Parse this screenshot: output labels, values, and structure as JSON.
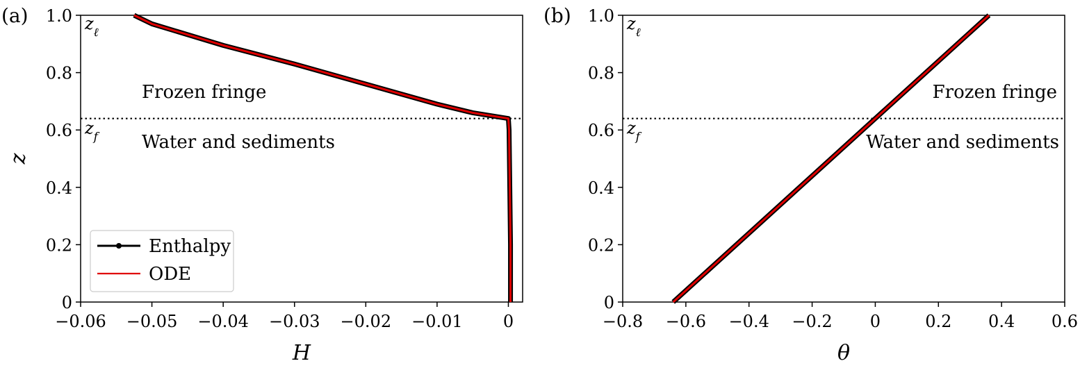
{
  "chart_data": [
    {
      "panel": "(a)",
      "type": "line",
      "xlabel": "H",
      "ylabel": "z",
      "xlim": [
        -0.06,
        0.002
      ],
      "ylim": [
        0,
        1.0
      ],
      "xticks": [
        -0.06,
        -0.05,
        -0.04,
        -0.03,
        -0.02,
        -0.01,
        0
      ],
      "xtick_labels": [
        "−0.06",
        "−0.05",
        "−0.04",
        "−0.03",
        "−0.02",
        "−0.01",
        "0"
      ],
      "yticks": [
        0,
        0.2,
        0.4,
        0.6,
        0.8,
        1.0
      ],
      "ytick_labels": [
        "0",
        "0.2",
        "0.4",
        "0.6",
        "0.8",
        "1.0"
      ],
      "freezing_front_z": 0.64,
      "annotations": {
        "z_top_main": "z",
        "z_top_sub": "ℓ",
        "z_front_main": "z",
        "z_front_sub": "f",
        "region_above": "Frozen fringe",
        "region_below": "Water and sediments"
      },
      "legend": {
        "position": "lower-left",
        "entries": [
          "Enthalpy",
          "ODE"
        ]
      },
      "series": [
        {
          "name": "Enthalpy",
          "color": "#000000",
          "marker": "dot",
          "points": [
            [
              0.0003,
              0.0
            ],
            [
              0.0003,
              0.2
            ],
            [
              0.0002,
              0.4
            ],
            [
              0.0001,
              0.6
            ],
            [
              0.0,
              0.64
            ],
            [
              -0.005,
              0.66
            ],
            [
              -0.01,
              0.69
            ],
            [
              -0.02,
              0.76
            ],
            [
              -0.03,
              0.83
            ],
            [
              -0.04,
              0.895
            ],
            [
              -0.05,
              0.97
            ],
            [
              -0.0525,
              1.0
            ]
          ]
        },
        {
          "name": "ODE",
          "color": "#e00000",
          "marker": "none",
          "points": [
            [
              0.0003,
              0.0
            ],
            [
              0.0003,
              0.2
            ],
            [
              0.0002,
              0.4
            ],
            [
              0.0001,
              0.6
            ],
            [
              0.0,
              0.64
            ],
            [
              -0.005,
              0.66
            ],
            [
              -0.01,
              0.69
            ],
            [
              -0.02,
              0.76
            ],
            [
              -0.03,
              0.83
            ],
            [
              -0.04,
              0.895
            ],
            [
              -0.05,
              0.97
            ],
            [
              -0.0525,
              1.0
            ]
          ]
        }
      ]
    },
    {
      "panel": "(b)",
      "type": "line",
      "xlabel": "θ",
      "ylabel": "",
      "xlim": [
        -0.8,
        0.6
      ],
      "ylim": [
        0,
        1.0
      ],
      "xticks": [
        -0.8,
        -0.6,
        -0.4,
        -0.2,
        0,
        0.2,
        0.4,
        0.6
      ],
      "xtick_labels": [
        "−0.8",
        "−0.6",
        "−0.4",
        "−0.2",
        "0",
        "0.2",
        "0.4",
        "0.6"
      ],
      "yticks": [
        0,
        0.2,
        0.4,
        0.6,
        0.8,
        1.0
      ],
      "ytick_labels": [
        "0",
        "0.2",
        "0.4",
        "0.6",
        "0.8",
        "1.0"
      ],
      "freezing_front_z": 0.64,
      "annotations": {
        "z_top_main": "z",
        "z_top_sub": "ℓ",
        "z_front_main": "z",
        "z_front_sub": "f",
        "region_above": "Frozen fringe",
        "region_below": "Water and sediments"
      },
      "series": [
        {
          "name": "Enthalpy",
          "color": "#000000",
          "marker": "dot",
          "points": [
            [
              -0.64,
              0.0
            ],
            [
              0.36,
              1.0
            ]
          ]
        },
        {
          "name": "ODE",
          "color": "#e00000",
          "marker": "none",
          "points": [
            [
              -0.64,
              0.0
            ],
            [
              0.36,
              1.0
            ]
          ]
        }
      ]
    }
  ]
}
